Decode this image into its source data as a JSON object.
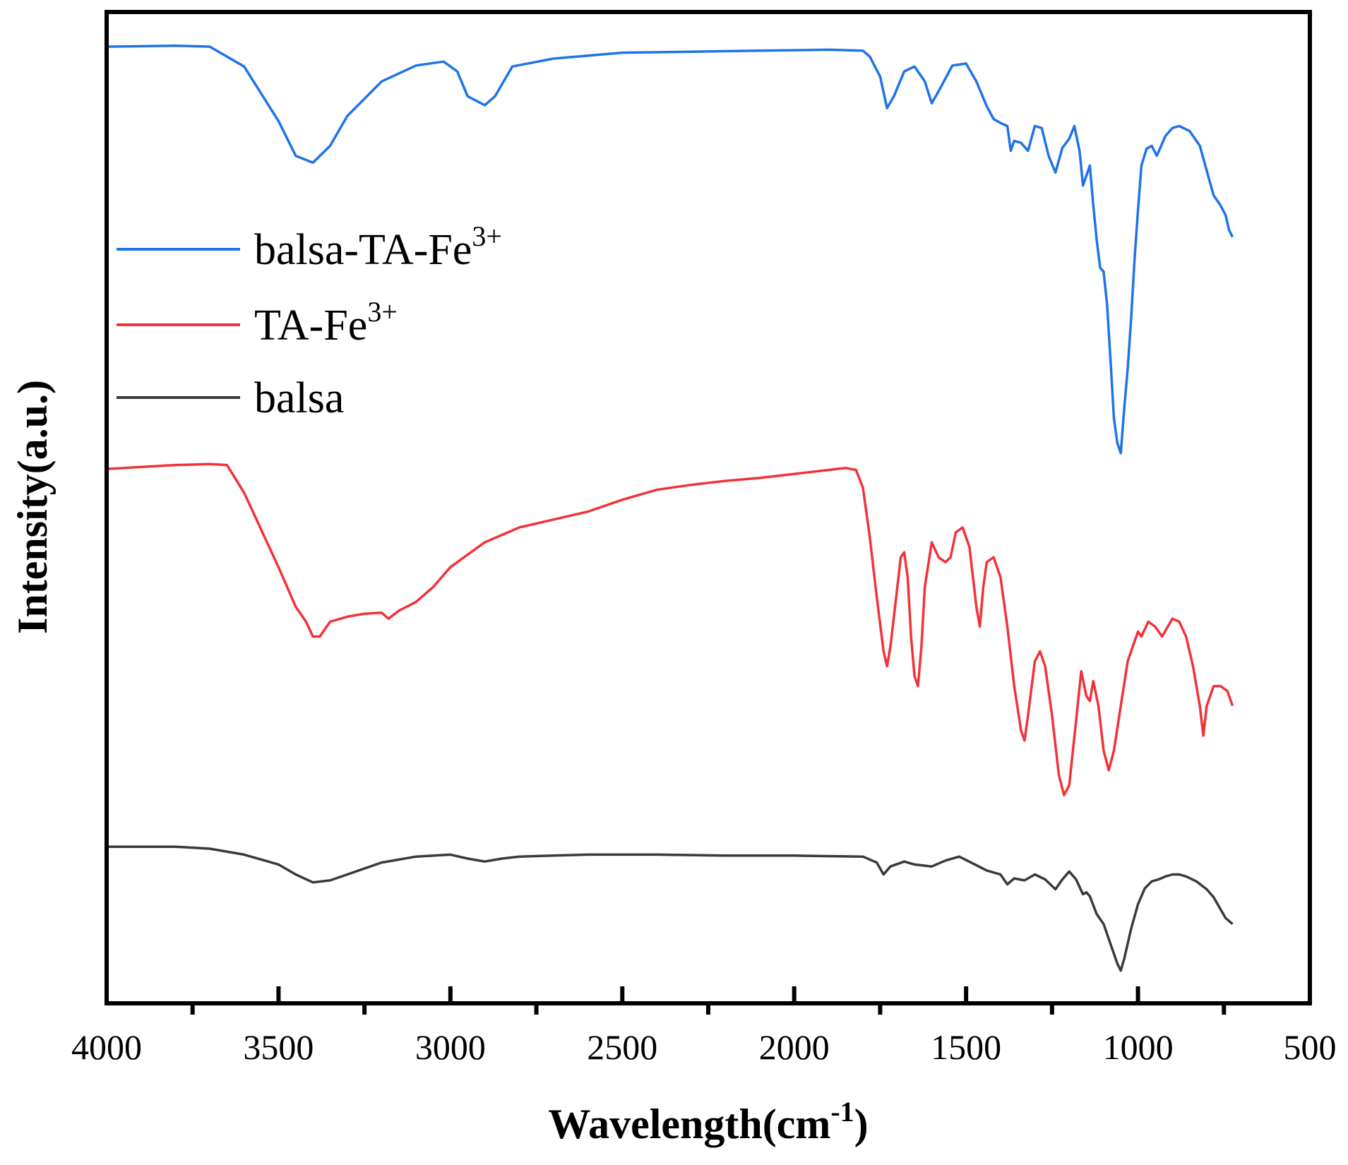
{
  "chart_data": {
    "type": "line",
    "xlabel": "Wavelength(cm",
    "xlabel_sup": "-1",
    "xlabel_close": ")",
    "ylabel": "Intensity(a.u.)",
    "xlim": [
      4000,
      500
    ],
    "x_reversed": true,
    "yticks_shown": false,
    "ylim": [
      0,
      100
    ],
    "x_ticks": [
      "4000",
      "3500",
      "3000",
      "2500",
      "2000",
      "1500",
      "1000",
      "500"
    ],
    "legend_position": "upper-left",
    "series": [
      {
        "name": "balsa-TA-Fe",
        "name_sup": "3+",
        "color": "#1E73E8",
        "points": [
          [
            4000,
            96.5
          ],
          [
            3800,
            96.6
          ],
          [
            3700,
            96.5
          ],
          [
            3600,
            94.5
          ],
          [
            3500,
            89
          ],
          [
            3450,
            85.5
          ],
          [
            3400,
            84.8
          ],
          [
            3350,
            86.5
          ],
          [
            3300,
            89.5
          ],
          [
            3200,
            93
          ],
          [
            3100,
            94.6
          ],
          [
            3020,
            95
          ],
          [
            2980,
            94
          ],
          [
            2950,
            91.5
          ],
          [
            2900,
            90.6
          ],
          [
            2870,
            91.5
          ],
          [
            2820,
            94.5
          ],
          [
            2700,
            95.3
          ],
          [
            2500,
            95.9
          ],
          [
            2300,
            96
          ],
          [
            2100,
            96.1
          ],
          [
            1900,
            96.2
          ],
          [
            1800,
            96.1
          ],
          [
            1780,
            95.5
          ],
          [
            1750,
            93.5
          ],
          [
            1730,
            90.3
          ],
          [
            1710,
            91.5
          ],
          [
            1680,
            94
          ],
          [
            1650,
            94.5
          ],
          [
            1620,
            93
          ],
          [
            1600,
            90.8
          ],
          [
            1580,
            92
          ],
          [
            1540,
            94.6
          ],
          [
            1500,
            94.8
          ],
          [
            1470,
            93
          ],
          [
            1440,
            90.5
          ],
          [
            1420,
            89.2
          ],
          [
            1400,
            88.8
          ],
          [
            1380,
            88.5
          ],
          [
            1370,
            86
          ],
          [
            1360,
            87
          ],
          [
            1340,
            86.8
          ],
          [
            1320,
            86
          ],
          [
            1300,
            88.5
          ],
          [
            1280,
            88.3
          ],
          [
            1260,
            85.5
          ],
          [
            1240,
            83.8
          ],
          [
            1220,
            86.3
          ],
          [
            1200,
            87.2
          ],
          [
            1185,
            88.5
          ],
          [
            1170,
            86
          ],
          [
            1160,
            82.5
          ],
          [
            1150,
            83.5
          ],
          [
            1140,
            84.5
          ],
          [
            1130,
            80.5
          ],
          [
            1120,
            77
          ],
          [
            1110,
            74.2
          ],
          [
            1100,
            73.8
          ],
          [
            1090,
            70.5
          ],
          [
            1080,
            65
          ],
          [
            1070,
            59
          ],
          [
            1060,
            56.5
          ],
          [
            1050,
            55.5
          ],
          [
            1040,
            60
          ],
          [
            1030,
            64
          ],
          [
            1020,
            69
          ],
          [
            1010,
            75
          ],
          [
            1000,
            80
          ],
          [
            990,
            84.5
          ],
          [
            975,
            86.2
          ],
          [
            960,
            86.5
          ],
          [
            945,
            85.5
          ],
          [
            920,
            87.5
          ],
          [
            900,
            88.3
          ],
          [
            880,
            88.5
          ],
          [
            850,
            88
          ],
          [
            820,
            86.5
          ],
          [
            800,
            84
          ],
          [
            780,
            81.5
          ],
          [
            760,
            80.5
          ],
          [
            745,
            79.5
          ],
          [
            735,
            78
          ],
          [
            725,
            77.3
          ]
        ]
      },
      {
        "name": "TA-Fe",
        "name_sup": "3+",
        "color": "#F23238",
        "points": [
          [
            4000,
            53.9
          ],
          [
            3900,
            54.1
          ],
          [
            3800,
            54.3
          ],
          [
            3700,
            54.4
          ],
          [
            3650,
            54.3
          ],
          [
            3600,
            51.5
          ],
          [
            3500,
            44
          ],
          [
            3450,
            40
          ],
          [
            3420,
            38.5
          ],
          [
            3400,
            37
          ],
          [
            3380,
            37
          ],
          [
            3350,
            38.5
          ],
          [
            3300,
            39
          ],
          [
            3250,
            39.3
          ],
          [
            3200,
            39.4
          ],
          [
            3180,
            38.8
          ],
          [
            3150,
            39.6
          ],
          [
            3100,
            40.5
          ],
          [
            3050,
            42
          ],
          [
            3000,
            44
          ],
          [
            2900,
            46.5
          ],
          [
            2800,
            48
          ],
          [
            2700,
            48.8
          ],
          [
            2600,
            49.6
          ],
          [
            2500,
            50.8
          ],
          [
            2400,
            51.8
          ],
          [
            2300,
            52.3
          ],
          [
            2200,
            52.7
          ],
          [
            2100,
            53
          ],
          [
            2000,
            53.4
          ],
          [
            1900,
            53.8
          ],
          [
            1850,
            54
          ],
          [
            1820,
            53.8
          ],
          [
            1800,
            52
          ],
          [
            1780,
            47
          ],
          [
            1760,
            41
          ],
          [
            1740,
            35.5
          ],
          [
            1730,
            34
          ],
          [
            1720,
            36
          ],
          [
            1700,
            42
          ],
          [
            1690,
            45
          ],
          [
            1680,
            45.5
          ],
          [
            1670,
            43
          ],
          [
            1660,
            37
          ],
          [
            1650,
            33
          ],
          [
            1640,
            32
          ],
          [
            1630,
            36
          ],
          [
            1620,
            42
          ],
          [
            1600,
            46.5
          ],
          [
            1580,
            45
          ],
          [
            1560,
            44.5
          ],
          [
            1545,
            45
          ],
          [
            1530,
            47.5
          ],
          [
            1510,
            48
          ],
          [
            1490,
            46
          ],
          [
            1470,
            40
          ],
          [
            1460,
            38
          ],
          [
            1450,
            42
          ],
          [
            1440,
            44.5
          ],
          [
            1420,
            45
          ],
          [
            1400,
            43
          ],
          [
            1380,
            38
          ],
          [
            1360,
            32
          ],
          [
            1340,
            27.5
          ],
          [
            1330,
            26.5
          ],
          [
            1320,
            29
          ],
          [
            1300,
            34.5
          ],
          [
            1285,
            35.5
          ],
          [
            1270,
            34
          ],
          [
            1250,
            29
          ],
          [
            1230,
            23
          ],
          [
            1215,
            21
          ],
          [
            1200,
            22
          ],
          [
            1180,
            28.5
          ],
          [
            1165,
            33.5
          ],
          [
            1150,
            31
          ],
          [
            1140,
            30.5
          ],
          [
            1130,
            32.5
          ],
          [
            1115,
            30
          ],
          [
            1100,
            25.5
          ],
          [
            1085,
            23.5
          ],
          [
            1070,
            25.5
          ],
          [
            1050,
            30
          ],
          [
            1030,
            34.5
          ],
          [
            1010,
            36.5
          ],
          [
            1000,
            37.5
          ],
          [
            990,
            37
          ],
          [
            970,
            38.5
          ],
          [
            950,
            38
          ],
          [
            930,
            37
          ],
          [
            900,
            38.8
          ],
          [
            880,
            38.5
          ],
          [
            860,
            37
          ],
          [
            840,
            34
          ],
          [
            820,
            30
          ],
          [
            810,
            27
          ],
          [
            800,
            30
          ],
          [
            780,
            32
          ],
          [
            760,
            32
          ],
          [
            740,
            31.5
          ],
          [
            725,
            30
          ]
        ]
      },
      {
        "name": "balsa",
        "name_sup": "",
        "color": "#3A3A3A",
        "points": [
          [
            4000,
            15.8
          ],
          [
            3800,
            15.8
          ],
          [
            3700,
            15.6
          ],
          [
            3600,
            15
          ],
          [
            3500,
            14
          ],
          [
            3450,
            13
          ],
          [
            3400,
            12.2
          ],
          [
            3350,
            12.4
          ],
          [
            3300,
            13
          ],
          [
            3200,
            14.2
          ],
          [
            3100,
            14.8
          ],
          [
            3000,
            15
          ],
          [
            2950,
            14.6
          ],
          [
            2900,
            14.3
          ],
          [
            2850,
            14.6
          ],
          [
            2800,
            14.8
          ],
          [
            2600,
            15
          ],
          [
            2400,
            15
          ],
          [
            2200,
            14.9
          ],
          [
            2000,
            14.9
          ],
          [
            1800,
            14.8
          ],
          [
            1760,
            14.2
          ],
          [
            1740,
            13
          ],
          [
            1720,
            13.8
          ],
          [
            1680,
            14.3
          ],
          [
            1650,
            14
          ],
          [
            1600,
            13.8
          ],
          [
            1560,
            14.4
          ],
          [
            1520,
            14.8
          ],
          [
            1480,
            14.1
          ],
          [
            1440,
            13.4
          ],
          [
            1400,
            13
          ],
          [
            1380,
            12
          ],
          [
            1360,
            12.6
          ],
          [
            1330,
            12.4
          ],
          [
            1300,
            13
          ],
          [
            1270,
            12.5
          ],
          [
            1240,
            11.5
          ],
          [
            1220,
            12.5
          ],
          [
            1200,
            13.3
          ],
          [
            1180,
            12.5
          ],
          [
            1160,
            11
          ],
          [
            1150,
            11.2
          ],
          [
            1140,
            10.8
          ],
          [
            1120,
            9
          ],
          [
            1100,
            8
          ],
          [
            1080,
            6
          ],
          [
            1060,
            4
          ],
          [
            1050,
            3.3
          ],
          [
            1040,
            4.5
          ],
          [
            1020,
            7.5
          ],
          [
            1000,
            10
          ],
          [
            980,
            11.6
          ],
          [
            960,
            12.3
          ],
          [
            940,
            12.5
          ],
          [
            920,
            12.8
          ],
          [
            900,
            13
          ],
          [
            880,
            13
          ],
          [
            860,
            12.8
          ],
          [
            830,
            12.3
          ],
          [
            800,
            11.5
          ],
          [
            780,
            10.7
          ],
          [
            760,
            9.5
          ],
          [
            745,
            8.6
          ],
          [
            725,
            8
          ]
        ]
      }
    ]
  }
}
